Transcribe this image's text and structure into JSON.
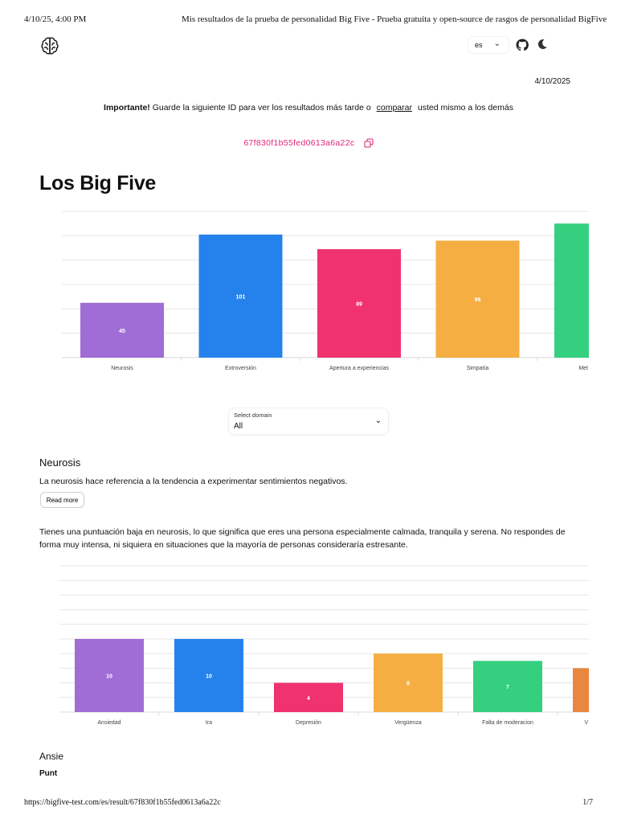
{
  "print": {
    "date": "4/10/25, 4:00 PM",
    "title": "Mis resultados de la prueba de personalidad Big Five - Prueba gratuita y open-source de rasgos de personalidad BigFive",
    "url": "https://bigfive-test.com/es/result/67f830f1b55fed0613a6a22c",
    "page": "1/7"
  },
  "header": {
    "logo_icon": "brain-icon",
    "language": "es",
    "github_icon": "github-icon",
    "theme_icon": "moon-icon"
  },
  "result": {
    "date": "4/10/2025",
    "important_label": "Importante!",
    "important_text": "Guarde la siguiente ID para ver los resultados más tarde o",
    "compare_link": "comparar",
    "important_suffix": "usted mismo a los demás",
    "id": "67f830f1b55fed0613a6a22c",
    "id_color": "#e0267a"
  },
  "page_title": "Los Big Five",
  "select": {
    "label": "Select domain",
    "value": "All"
  },
  "domain": {
    "title": "Neurosis",
    "description": "La neurosis hace referencia a la tendencia a experimentar sentimientos negativos.",
    "read_more": "Read more",
    "result_text": "Tienes una puntuación baja en neurosis, lo que significa que eres una persona especialmente calmada, tranquila y serena. No respondes de forma muy intensa, ni siquiera en situaciones que la mayoría de personas consideraría estresante."
  },
  "facet_heading": "Ansie",
  "facet_score": "Punt",
  "chart_data": [
    {
      "type": "bar",
      "categories": [
        "Neurosis",
        "Extroversión",
        "Apertura a experiencias",
        "Simpatía",
        "Met"
      ],
      "values": [
        45,
        101,
        89,
        96,
        110
      ],
      "value_labels": [
        "45",
        "101",
        "89",
        "96",
        ""
      ],
      "colors": [
        "#a06cd5",
        "#2582ec",
        "#f0326f",
        "#f5ae42",
        "#35d07f"
      ],
      "ylim": [
        0,
        120
      ],
      "grid": true
    },
    {
      "type": "bar",
      "categories": [
        "Ansiedad",
        "Ira",
        "Depresión",
        "Vergüenza",
        "Falta de moderacion",
        "V"
      ],
      "values": [
        10,
        10,
        4,
        8,
        7,
        6
      ],
      "value_labels": [
        "10",
        "10",
        "4",
        "8",
        "7",
        ""
      ],
      "colors": [
        "#a06cd5",
        "#2582ec",
        "#f0326f",
        "#f5ae42",
        "#35d07f",
        "#e8873d"
      ],
      "ylim": [
        0,
        20
      ],
      "grid": true
    }
  ]
}
